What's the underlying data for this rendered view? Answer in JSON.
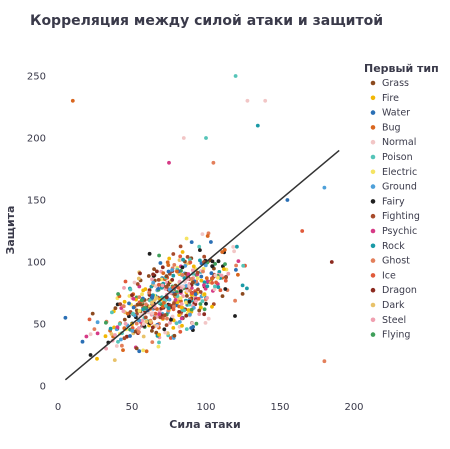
{
  "chart_data": {
    "type": "scatter",
    "title": "Корреляция между силой атаки и защитой",
    "xlabel": "Сила атаки",
    "ylabel": "Защита",
    "xlim": [
      0,
      200
    ],
    "ylim": [
      0,
      250
    ],
    "xticks": [
      0,
      50,
      100,
      150,
      200
    ],
    "yticks": [
      0,
      50,
      100,
      150,
      200,
      250
    ],
    "grid": false,
    "legend": {
      "title": "Первый тип",
      "placement": "right",
      "items": [
        {
          "name": "Grass",
          "color": "#8c4a1f"
        },
        {
          "name": "Fire",
          "color": "#f2b705"
        },
        {
          "name": "Water",
          "color": "#2a6fb5"
        },
        {
          "name": "Bug",
          "color": "#d9661f"
        },
        {
          "name": "Normal",
          "color": "#f2c6c6"
        },
        {
          "name": "Poison",
          "color": "#55c4b8"
        },
        {
          "name": "Electric",
          "color": "#f5e463"
        },
        {
          "name": "Ground",
          "color": "#4ea0d9"
        },
        {
          "name": "Fairy",
          "color": "#1f1f1f"
        },
        {
          "name": "Fighting",
          "color": "#a84b2b"
        },
        {
          "name": "Psychic",
          "color": "#d63a86"
        },
        {
          "name": "Rock",
          "color": "#1a9aa6"
        },
        {
          "name": "Ghost",
          "color": "#e37f5b"
        },
        {
          "name": "Ice",
          "color": "#e05a3a"
        },
        {
          "name": "Dragon",
          "color": "#8c2a1f"
        },
        {
          "name": "Dark",
          "color": "#e8c26a"
        },
        {
          "name": "Steel",
          "color": "#f0a0b0"
        },
        {
          "name": "Flying",
          "color": "#3f9f5a"
        }
      ]
    },
    "trendline": {
      "x": [
        5,
        190
      ],
      "y": [
        5,
        190
      ],
      "color": "#333333"
    },
    "highlight_points": [
      {
        "x": 10,
        "y": 230,
        "series": "Bug"
      },
      {
        "x": 120,
        "y": 250,
        "series": "Poison"
      },
      {
        "x": 128,
        "y": 230,
        "series": "Normal"
      },
      {
        "x": 140,
        "y": 230,
        "series": "Normal"
      },
      {
        "x": 135,
        "y": 210,
        "series": "Rock"
      },
      {
        "x": 85,
        "y": 200,
        "series": "Normal"
      },
      {
        "x": 100,
        "y": 200,
        "series": "Poison"
      },
      {
        "x": 75,
        "y": 180,
        "series": "Psychic"
      },
      {
        "x": 105,
        "y": 180,
        "series": "Ghost"
      },
      {
        "x": 180,
        "y": 20,
        "series": "Ghost"
      },
      {
        "x": 155,
        "y": 150,
        "series": "Water"
      },
      {
        "x": 180,
        "y": 160,
        "series": "Ground"
      },
      {
        "x": 165,
        "y": 125,
        "series": "Ice"
      },
      {
        "x": 185,
        "y": 100,
        "series": "Dragon"
      },
      {
        "x": 5,
        "y": 55,
        "series": "Water"
      },
      {
        "x": 22,
        "y": 25,
        "series": "Fairy"
      }
    ]
  }
}
